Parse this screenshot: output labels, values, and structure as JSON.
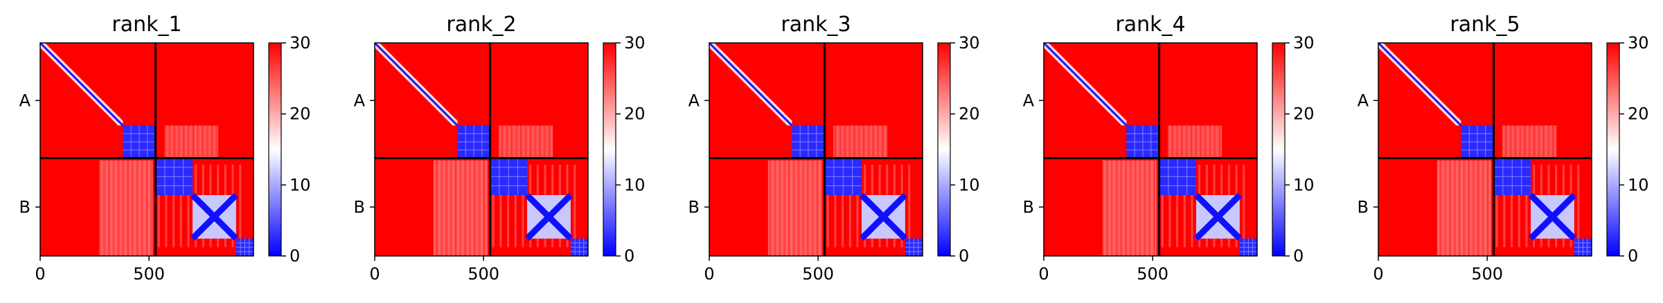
{
  "chart_data": [
    {
      "type": "heatmap",
      "title": "rank_1",
      "x_ticks": [
        {
          "value": 0,
          "label": "0"
        },
        {
          "value": 500,
          "label": "500"
        }
      ],
      "xlim": [
        0,
        980
      ],
      "chain_boundary": 530,
      "y_labels": [
        {
          "label": "A",
          "center": 265
        },
        {
          "label": "B",
          "center": 755
        }
      ],
      "colorbar": {
        "min": 0,
        "max": 30,
        "ticks": [
          {
            "value": 0,
            "label": "0"
          },
          {
            "value": 10,
            "label": "10"
          },
          {
            "value": 20,
            "label": "20"
          },
          {
            "value": 30,
            "label": "30"
          }
        ],
        "colors": [
          "#0000ff",
          "#ffffff",
          "#ff0000"
        ]
      },
      "low_error_blocks": [
        [
          0,
          380
        ],
        [
          380,
          530
        ],
        [
          530,
          700
        ],
        [
          700,
          900
        ],
        [
          900,
          980
        ]
      ]
    },
    {
      "type": "heatmap",
      "title": "rank_2",
      "x_ticks": [
        {
          "value": 0,
          "label": "0"
        },
        {
          "value": 500,
          "label": "500"
        }
      ],
      "xlim": [
        0,
        980
      ],
      "chain_boundary": 530,
      "y_labels": [
        {
          "label": "A",
          "center": 265
        },
        {
          "label": "B",
          "center": 755
        }
      ],
      "colorbar": {
        "min": 0,
        "max": 30,
        "ticks": [
          {
            "value": 0,
            "label": "0"
          },
          {
            "value": 10,
            "label": "10"
          },
          {
            "value": 20,
            "label": "20"
          },
          {
            "value": 30,
            "label": "30"
          }
        ],
        "colors": [
          "#0000ff",
          "#ffffff",
          "#ff0000"
        ]
      },
      "low_error_blocks": [
        [
          0,
          380
        ],
        [
          380,
          530
        ],
        [
          530,
          700
        ],
        [
          700,
          900
        ],
        [
          900,
          980
        ]
      ]
    },
    {
      "type": "heatmap",
      "title": "rank_3",
      "x_ticks": [
        {
          "value": 0,
          "label": "0"
        },
        {
          "value": 500,
          "label": "500"
        }
      ],
      "xlim": [
        0,
        980
      ],
      "chain_boundary": 530,
      "y_labels": [
        {
          "label": "A",
          "center": 265
        },
        {
          "label": "B",
          "center": 755
        }
      ],
      "colorbar": {
        "min": 0,
        "max": 30,
        "ticks": [
          {
            "value": 0,
            "label": "0"
          },
          {
            "value": 10,
            "label": "10"
          },
          {
            "value": 20,
            "label": "20"
          },
          {
            "value": 30,
            "label": "30"
          }
        ],
        "colors": [
          "#0000ff",
          "#ffffff",
          "#ff0000"
        ]
      },
      "low_error_blocks": [
        [
          0,
          380
        ],
        [
          380,
          530
        ],
        [
          530,
          700
        ],
        [
          700,
          900
        ],
        [
          900,
          980
        ]
      ]
    },
    {
      "type": "heatmap",
      "title": "rank_4",
      "x_ticks": [
        {
          "value": 0,
          "label": "0"
        },
        {
          "value": 500,
          "label": "500"
        }
      ],
      "xlim": [
        0,
        980
      ],
      "chain_boundary": 530,
      "y_labels": [
        {
          "label": "A",
          "center": 265
        },
        {
          "label": "B",
          "center": 755
        }
      ],
      "colorbar": {
        "min": 0,
        "max": 30,
        "ticks": [
          {
            "value": 0,
            "label": "0"
          },
          {
            "value": 10,
            "label": "10"
          },
          {
            "value": 20,
            "label": "20"
          },
          {
            "value": 30,
            "label": "30"
          }
        ],
        "colors": [
          "#0000ff",
          "#ffffff",
          "#ff0000"
        ]
      },
      "low_error_blocks": [
        [
          0,
          380
        ],
        [
          380,
          530
        ],
        [
          530,
          700
        ],
        [
          700,
          900
        ],
        [
          900,
          980
        ]
      ]
    },
    {
      "type": "heatmap",
      "title": "rank_5",
      "x_ticks": [
        {
          "value": 0,
          "label": "0"
        },
        {
          "value": 500,
          "label": "500"
        }
      ],
      "xlim": [
        0,
        980
      ],
      "chain_boundary": 530,
      "y_labels": [
        {
          "label": "A",
          "center": 265
        },
        {
          "label": "B",
          "center": 755
        }
      ],
      "colorbar": {
        "min": 0,
        "max": 30,
        "ticks": [
          {
            "value": 0,
            "label": "0"
          },
          {
            "value": 10,
            "label": "10"
          },
          {
            "value": 20,
            "label": "20"
          },
          {
            "value": 30,
            "label": "30"
          }
        ],
        "colors": [
          "#0000ff",
          "#ffffff",
          "#ff0000"
        ]
      },
      "low_error_blocks": [
        [
          0,
          380
        ],
        [
          380,
          530
        ],
        [
          530,
          700
        ],
        [
          700,
          900
        ],
        [
          900,
          980
        ]
      ]
    }
  ]
}
